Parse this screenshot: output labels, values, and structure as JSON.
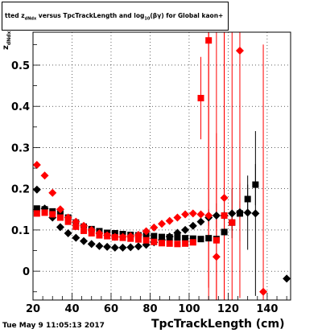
{
  "chart_data": {
    "type": "scatter",
    "title_prefix": "tted  z",
    "title_sub": "dNdx",
    "title_mid": " versus TpcTrackLength and log",
    "title_sub2": "10",
    "title_suffix": "(βγ) for Global kaon+",
    "xlabel": "TpcTrackLength (cm)",
    "ylabel_main": "z",
    "ylabel_sub": "dNdx",
    "footer": "Tue May  9 11:05:13 2017",
    "xlim": [
      20,
      152
    ],
    "ylim": [
      -0.07,
      0.58
    ],
    "x_ticks": [
      20,
      40,
      60,
      80,
      100,
      120,
      140
    ],
    "y_ticks": [
      0,
      0.1,
      0.2,
      0.3,
      0.4,
      0.5
    ],
    "x_tick_labels": [
      "20",
      "40",
      "60",
      "80",
      "100",
      "120",
      "140"
    ],
    "y_tick_labels": [
      "0",
      "0.1",
      "0.2",
      "0.3",
      "0.4",
      "0.5"
    ],
    "grid": true,
    "series": [
      {
        "marker": "square",
        "color": "#000000",
        "x": [
          22,
          26,
          30,
          34,
          38,
          42,
          46,
          50,
          54,
          58,
          62,
          66,
          70,
          74,
          78,
          82,
          86,
          90,
          94,
          98,
          102,
          106,
          110,
          114,
          118,
          122,
          126,
          130,
          134
        ],
        "y": [
          0.152,
          0.15,
          0.145,
          0.14,
          0.13,
          0.118,
          0.108,
          0.102,
          0.097,
          0.093,
          0.092,
          0.09,
          0.088,
          0.087,
          0.086,
          0.085,
          0.083,
          0.082,
          0.082,
          0.08,
          0.079,
          0.078,
          0.08,
          0.078,
          0.095,
          0.118,
          0.14,
          0.175,
          0.21
        ],
        "err": [
          0,
          0,
          0,
          0,
          0,
          0,
          0,
          0,
          0,
          0,
          0,
          0,
          0,
          0,
          0,
          0,
          0,
          0,
          0,
          0,
          0,
          0,
          0.005,
          0.006,
          0.01,
          0.02,
          0.03,
          0.035,
          0.05
        ]
      },
      {
        "marker": "diamond",
        "color": "#000000",
        "x": [
          22,
          26,
          30,
          34,
          38,
          42,
          46,
          50,
          54,
          58,
          62,
          66,
          70,
          74,
          78,
          82,
          86,
          90,
          94,
          98,
          102,
          106,
          110,
          114,
          118,
          122,
          126,
          130,
          134,
          150
        ],
        "y": [
          0.198,
          0.152,
          0.13,
          0.107,
          0.092,
          0.081,
          0.073,
          0.066,
          0.061,
          0.059,
          0.057,
          0.057,
          0.058,
          0.06,
          0.064,
          0.07,
          0.076,
          0.084,
          0.093,
          0.1,
          0.11,
          0.12,
          0.13,
          0.135,
          0.135,
          0.14,
          0.143,
          0.142,
          0.14,
          -0.018
        ],
        "err": [
          0,
          0,
          0,
          0,
          0,
          0,
          0,
          0,
          0,
          0,
          0,
          0,
          0,
          0,
          0,
          0,
          0,
          0,
          0,
          0,
          0,
          0,
          0.02,
          0.03,
          0.05,
          0.06,
          0.07,
          0.09,
          0.2,
          0
        ]
      },
      {
        "marker": "square",
        "color": "#ff0000",
        "x": [
          22,
          26,
          30,
          34,
          38,
          42,
          46,
          50,
          54,
          58,
          62,
          66,
          70,
          74,
          78,
          82,
          86,
          90,
          94,
          98,
          102,
          106,
          110,
          114,
          118,
          122
        ],
        "y": [
          0.14,
          0.142,
          0.138,
          0.13,
          0.12,
          0.108,
          0.098,
          0.092,
          0.087,
          0.085,
          0.082,
          0.081,
          0.079,
          0.077,
          0.075,
          0.071,
          0.068,
          0.067,
          0.066,
          0.067,
          0.07,
          0.42,
          0.56,
          0.075,
          0.135,
          0.118
        ],
        "err": [
          0,
          0,
          0,
          0,
          0,
          0,
          0,
          0,
          0,
          0,
          0,
          0,
          0,
          0,
          0,
          0,
          0,
          0,
          0,
          0,
          0,
          0.1,
          0.6,
          0.6,
          0.6,
          0.6
        ]
      },
      {
        "marker": "diamond",
        "color": "#ff0000",
        "x": [
          22,
          26,
          30,
          34,
          38,
          42,
          46,
          50,
          54,
          58,
          62,
          66,
          70,
          74,
          78,
          82,
          86,
          90,
          94,
          98,
          102,
          106,
          110,
          114,
          118,
          126,
          138
        ],
        "y": [
          0.258,
          0.232,
          0.19,
          0.15,
          0.13,
          0.12,
          0.11,
          0.1,
          0.092,
          0.087,
          0.083,
          0.083,
          0.085,
          0.088,
          0.097,
          0.106,
          0.115,
          0.122,
          0.13,
          0.138,
          0.14,
          0.138,
          0.135,
          0.035,
          0.178,
          0.535,
          -0.05
        ],
        "err": [
          0,
          0,
          0,
          0,
          0,
          0,
          0,
          0,
          0,
          0,
          0,
          0,
          0,
          0,
          0,
          0,
          0,
          0,
          0,
          0,
          0,
          0,
          0.6,
          0.3,
          0.6,
          0.6,
          0.6
        ]
      }
    ]
  }
}
